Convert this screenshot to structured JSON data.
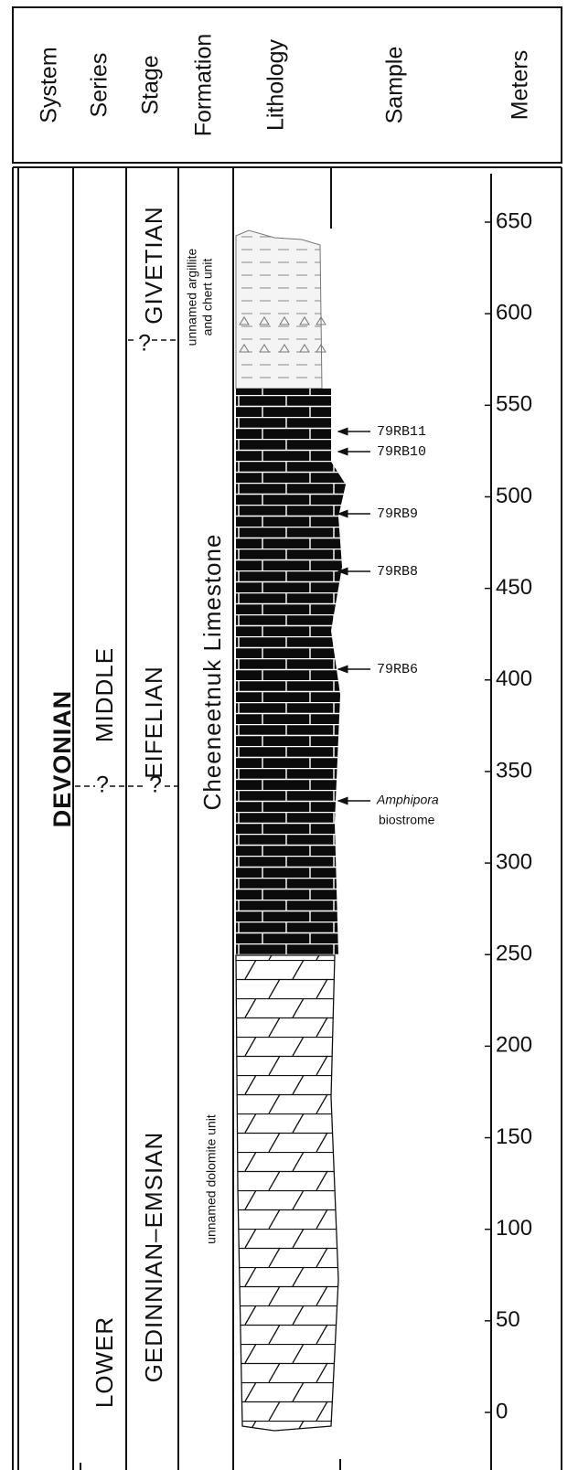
{
  "header": {
    "columns": [
      "System",
      "Series",
      "Stage",
      "Formation",
      "Lithology",
      "Sample",
      "Meters"
    ]
  },
  "system": "DEVONIAN",
  "series": [
    "MIDDLE",
    "?",
    "LOWER"
  ],
  "stage": [
    "GIVETIAN",
    "?",
    "EIFELIAN",
    "?",
    "GEDINNIAN–EMSIAN"
  ],
  "formation": [
    "unnamed argillite",
    "and chert unit",
    "Cheeneetnuk Limestone",
    "unnamed dolomite unit"
  ],
  "samples": [
    {
      "label": "79RB11"
    },
    {
      "label": "79RB10"
    },
    {
      "label": "79RB9"
    },
    {
      "label": "79RB8"
    },
    {
      "label": "79RB6"
    },
    {
      "label": "Amphipora",
      "note": "biostrome"
    }
  ],
  "meters": {
    "ticks": [
      0,
      50,
      100,
      150,
      200,
      250,
      300,
      350,
      400,
      450,
      500,
      550,
      600,
      650
    ]
  }
}
